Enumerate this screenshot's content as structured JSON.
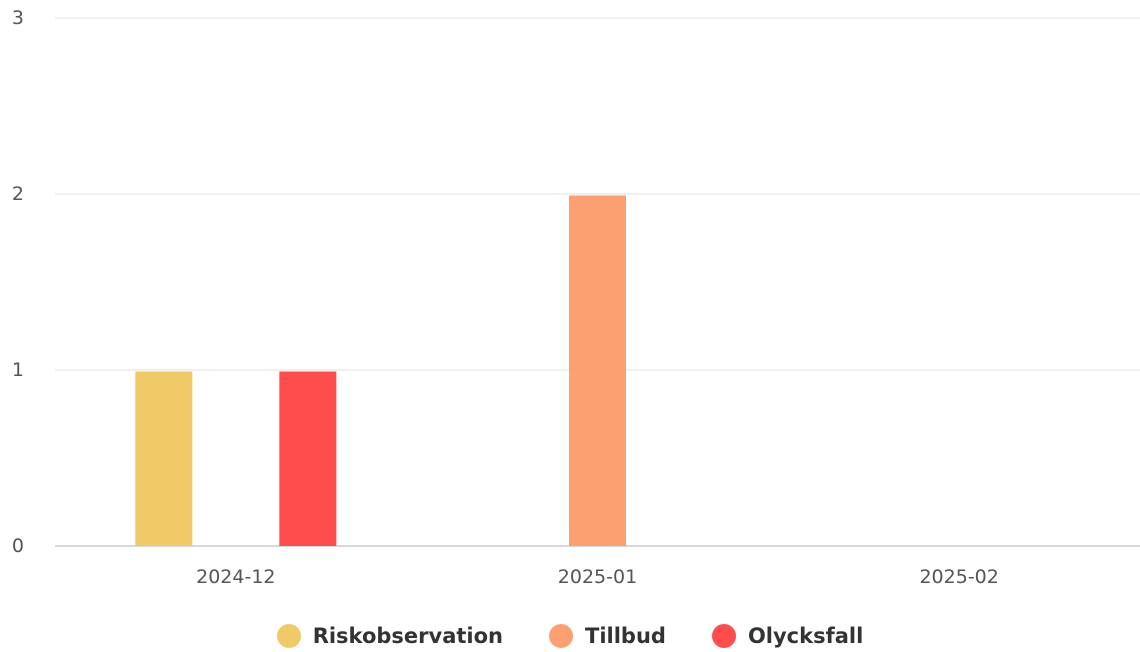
{
  "chart_data": {
    "type": "bar",
    "categories": [
      "2024-12",
      "2025-01",
      "2025-02"
    ],
    "series": [
      {
        "name": "Riskobservation",
        "color": "#F0CA66",
        "values": [
          1,
          0,
          0
        ]
      },
      {
        "name": "Tillbud",
        "color": "#FCA072",
        "values": [
          0,
          2,
          0
        ]
      },
      {
        "name": "Olycksfall",
        "color": "#FF4D4D",
        "values": [
          1,
          0,
          0
        ]
      }
    ],
    "ylim": [
      0,
      3
    ],
    "yticks": [
      "0",
      "1",
      "2",
      "3"
    ],
    "grid": true,
    "legend_position": "bottom-center"
  }
}
